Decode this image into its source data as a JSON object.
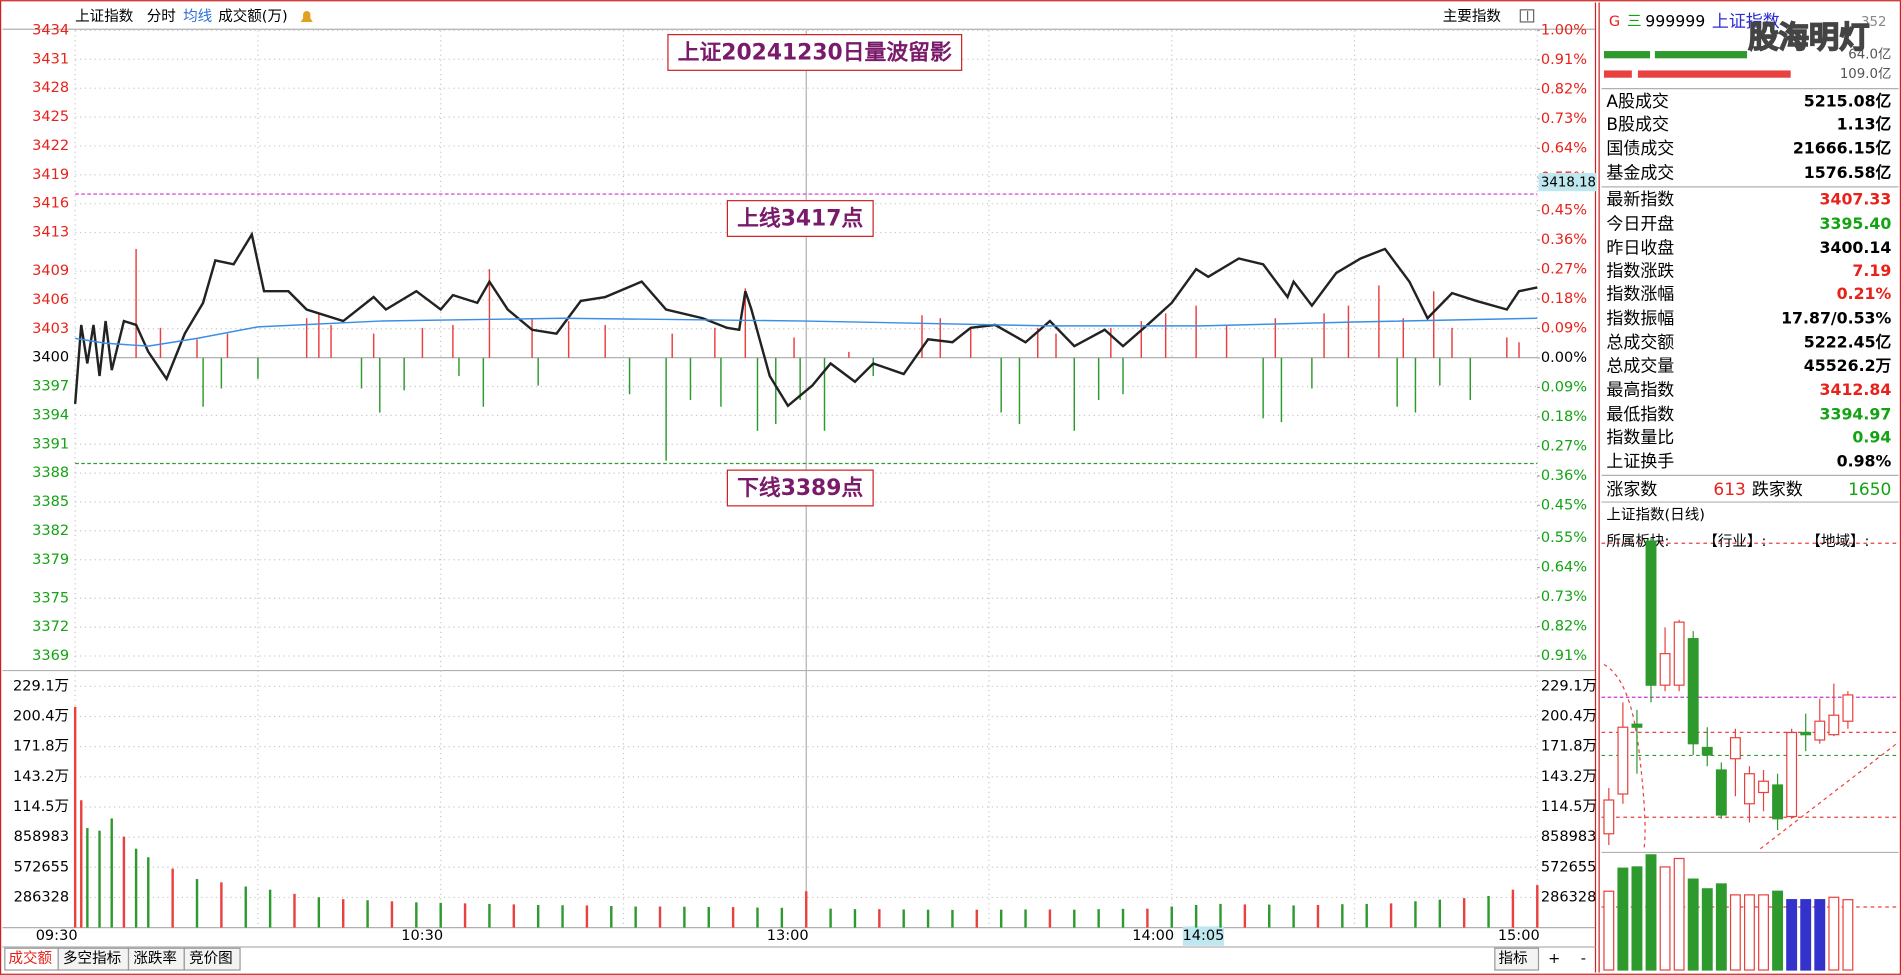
{
  "toolbar": {
    "items": [
      "上证指数",
      "分时",
      "均线",
      "成交额(万)"
    ],
    "right": "主要指数"
  },
  "tabs": {
    "items": [
      "成交额",
      "多空指标",
      "涨跌率",
      "竞价图"
    ],
    "right": [
      "指标",
      "+",
      "-"
    ]
  },
  "quote": {
    "market": "G",
    "menu": "三",
    "code": "999999",
    "name": "上证指数",
    "rank": "352",
    "watermark": "股海明灯",
    "bar_labels": [
      "64.0亿",
      "109.0亿"
    ],
    "rows": [
      {
        "label": "A股成交",
        "value": "5215.08亿",
        "color": "#000000"
      },
      {
        "label": "B股成交",
        "value": "1.13亿",
        "color": "#000000"
      },
      {
        "label": "国债成交",
        "value": "21666.15亿",
        "color": "#000000"
      },
      {
        "label": "基金成交",
        "value": "1576.58亿",
        "color": "#000000"
      },
      {
        "label": "最新指数",
        "value": "3407.33",
        "color": "#e8211a"
      },
      {
        "label": "今日开盘",
        "value": "3395.40",
        "color": "#13a313"
      },
      {
        "label": "昨日收盘",
        "value": "3400.14",
        "color": "#000000"
      },
      {
        "label": "指数涨跌",
        "value": "7.19",
        "color": "#e8211a"
      },
      {
        "label": "指数涨幅",
        "value": "0.21%",
        "color": "#e8211a"
      },
      {
        "label": "指数振幅",
        "value": "17.87/0.53%",
        "color": "#000000"
      },
      {
        "label": "总成交额",
        "value": "5222.45亿",
        "color": "#000000"
      },
      {
        "label": "总成交量",
        "value": "45526.2万",
        "color": "#000000"
      },
      {
        "label": "最高指数",
        "value": "3412.84",
        "color": "#e8211a"
      },
      {
        "label": "最低指数",
        "value": "3394.97",
        "color": "#13a313"
      },
      {
        "label": "指数量比",
        "value": "0.94",
        "color": "#13a313"
      },
      {
        "label": "上证换手",
        "value": "0.98%",
        "color": "#000000"
      }
    ],
    "advance_label": "涨家数",
    "advance": "613",
    "decline_label": "跌家数",
    "decline": "1650"
  },
  "chart_data": [
    {
      "type": "line",
      "title": "上证20241230日量波留影",
      "xlim": [
        0,
        240
      ],
      "xticks": [
        {
          "value": 0,
          "label": "09:30"
        },
        {
          "value": 60,
          "label": "10:30"
        },
        {
          "value": 120,
          "label": "13:00"
        },
        {
          "value": 180,
          "label": "14:00"
        },
        {
          "value": 240,
          "label": "15:00"
        }
      ],
      "xminor": [
        30,
        90,
        150,
        210
      ],
      "session_break": 120,
      "ylim": [
        3369,
        3434
      ],
      "yticks": [
        3434,
        3431,
        3428,
        3425,
        3422,
        3419,
        3416,
        3413,
        3409,
        3406,
        3403,
        3400,
        3397,
        3394,
        3391,
        3388,
        3385,
        3382,
        3379,
        3375,
        3372,
        3369
      ],
      "y2lim": [
        -0.91,
        1.0
      ],
      "y2ticks": [
        {
          "value": 1.0,
          "label": "1.00%"
        },
        {
          "value": 0.91,
          "label": "0.91%"
        },
        {
          "value": 0.82,
          "label": "0.82%"
        },
        {
          "value": 0.73,
          "label": "0.73%"
        },
        {
          "value": 0.64,
          "label": "0.64%"
        },
        {
          "value": 0.55,
          "label": "0.55%"
        },
        {
          "value": 0.45,
          "label": "0.45%"
        },
        {
          "value": 0.36,
          "label": "0.36%"
        },
        {
          "value": 0.27,
          "label": "0.27%"
        },
        {
          "value": 0.18,
          "label": "0.18%"
        },
        {
          "value": 0.09,
          "label": "0.09%"
        },
        {
          "value": 0,
          "label": "0.00%"
        },
        {
          "value": -0.09,
          "label": "0.09%"
        },
        {
          "value": -0.18,
          "label": "0.18%"
        },
        {
          "value": -0.27,
          "label": "0.27%"
        },
        {
          "value": -0.36,
          "label": "0.36%"
        },
        {
          "value": -0.45,
          "label": "0.45%"
        },
        {
          "value": -0.55,
          "label": "0.55%"
        },
        {
          "value": -0.64,
          "label": "0.64%"
        },
        {
          "value": -0.73,
          "label": "0.73%"
        },
        {
          "value": -0.82,
          "label": "0.82%"
        },
        {
          "value": -0.91,
          "label": "0.91%"
        }
      ],
      "grid": true,
      "up_color": "#e8413f",
      "down_color": "#2e9a2e",
      "series": [
        {
          "color": "#222222",
          "x": [
            0,
            1,
            2,
            3,
            4,
            5,
            6,
            8,
            10,
            12,
            15,
            18,
            21,
            23,
            26,
            29,
            31,
            35,
            38,
            44,
            49,
            51,
            56,
            60,
            62,
            66,
            68,
            71,
            75,
            79,
            83,
            87,
            93,
            97,
            103,
            107,
            109,
            110,
            111,
            114,
            117,
            121,
            124,
            128,
            131,
            136,
            140,
            144,
            147,
            151,
            156,
            160,
            164,
            169,
            172,
            176,
            180,
            184,
            186,
            191,
            195,
            199,
            200,
            203,
            207,
            211,
            215,
            219,
            222,
            226,
            230,
            235,
            237,
            240
          ],
          "values": [
            3395.2,
            3403.4,
            3399.4,
            3403.4,
            3398.1,
            3403.8,
            3398.7,
            3403.8,
            3403.4,
            3400.6,
            3397.8,
            3402.5,
            3405.7,
            3410.1,
            3409.7,
            3412.8,
            3406.9,
            3406.9,
            3405.0,
            3403.8,
            3406.3,
            3405.0,
            3406.9,
            3405.0,
            3406.5,
            3405.7,
            3407.9,
            3405.0,
            3402.9,
            3402.5,
            3405.9,
            3406.3,
            3407.9,
            3405.0,
            3404.1,
            3403.1,
            3402.9,
            3406.9,
            3405.0,
            3398.1,
            3395.0,
            3397.1,
            3399.4,
            3397.5,
            3399.4,
            3398.3,
            3401.9,
            3401.6,
            3403.1,
            3403.4,
            3401.6,
            3403.8,
            3401.2,
            3402.9,
            3401.2,
            3403.4,
            3405.7,
            3409.2,
            3408.4,
            3410.3,
            3409.7,
            3406.3,
            3407.9,
            3405.4,
            3408.8,
            3410.3,
            3411.3,
            3407.9,
            3404.1,
            3406.7,
            3405.9,
            3405.0,
            3406.9,
            3407.3
          ]
        },
        {
          "color": "#3a8ee6",
          "x": [
            0,
            5,
            12,
            20,
            30,
            50,
            80,
            120,
            160,
            185,
            210,
            240
          ],
          "values": [
            3402.0,
            3401.5,
            3401.2,
            3402.0,
            3403.2,
            3403.8,
            3404.1,
            3403.8,
            3403.3,
            3403.3,
            3403.7,
            3404.1
          ]
        }
      ],
      "breadth": {
        "x": [
          10,
          14,
          20,
          21,
          24,
          25,
          30,
          38,
          40,
          42,
          47,
          49,
          50,
          54,
          57,
          62,
          63,
          67,
          68,
          75,
          76,
          81,
          87,
          91,
          97,
          98,
          101,
          105,
          106,
          110,
          112,
          115,
          118,
          119,
          123,
          127,
          131,
          139,
          142,
          147,
          152,
          155,
          158,
          161,
          164,
          168,
          170,
          172,
          175,
          179,
          184,
          189,
          195,
          197,
          198,
          203,
          205,
          209,
          214,
          217,
          218,
          220,
          223,
          224,
          226,
          229,
          235,
          237
        ],
        "values": [
          3411.3,
          3403.1,
          3401.9,
          3394.9,
          3396.8,
          3402.5,
          3397.8,
          3404.1,
          3404.6,
          3403.4,
          3396.8,
          3402.5,
          3394.3,
          3396.6,
          3403.1,
          3403.4,
          3398.1,
          3394.9,
          3409.2,
          3404.1,
          3397.1,
          3403.8,
          3403.4,
          3396.2,
          3389.3,
          3402.5,
          3395.6,
          3403.1,
          3394.9,
          3407.2,
          3392.4,
          3393.1,
          3402.1,
          3395.6,
          3392.4,
          3400.6,
          3398.1,
          3404.4,
          3404.1,
          3403.1,
          3394.3,
          3393.1,
          3403.1,
          3402.5,
          3392.4,
          3395.6,
          3403.1,
          3396.2,
          3403.8,
          3404.6,
          3405.4,
          3403.4,
          3393.7,
          3404.1,
          3393.3,
          3396.8,
          3404.6,
          3405.4,
          3407.5,
          3394.9,
          3404.1,
          3394.3,
          3406.9,
          3397.1,
          3403.1,
          3395.6,
          3402.1,
          3401.6
        ]
      },
      "ref_lines": [
        {
          "value": 3417,
          "color": "#cc33cc",
          "label": "上线3417点"
        },
        {
          "value": 3389,
          "color": "#339933",
          "label": "下线3389点"
        }
      ],
      "cursor": {
        "y": 3418.18,
        "x": {
          "value": 185,
          "label": "14:05"
        }
      }
    },
    {
      "type": "bar",
      "xlim": [
        0,
        240
      ],
      "ylim": [
        0,
        2290621
      ],
      "yticks": [
        {
          "value": 2290621,
          "label": "229.1万"
        },
        {
          "value": 2004293,
          "label": "200.4万"
        },
        {
          "value": 1717966,
          "label": "171.8万"
        },
        {
          "value": 1431638,
          "label": "143.2万"
        },
        {
          "value": 1145311,
          "label": "114.5万"
        },
        858983,
        572655,
        286328
      ],
      "grid": true,
      "series": [
        {
          "color": "#e8413f",
          "x": [
            0,
            1,
            8,
            16,
            24,
            36,
            44,
            52,
            64,
            72,
            84,
            96,
            108,
            120,
            132,
            148,
            160,
            176,
            192,
            204,
            216,
            228,
            236,
            240
          ],
          "values": [
            2096000,
            1209000,
            864000,
            560000,
            430000,
            320000,
            270000,
            250000,
            230000,
            220000,
            210000,
            200000,
            195000,
            345000,
            175000,
            170000,
            172000,
            180000,
            220000,
            215000,
            230000,
            280000,
            360000,
            403000
          ]
        },
        {
          "color": "#2e9a2e",
          "x": [
            2,
            4,
            6,
            10,
            12,
            20,
            28,
            32,
            40,
            48,
            56,
            60,
            68,
            76,
            80,
            88,
            92,
            100,
            104,
            112,
            116,
            124,
            128,
            136,
            140,
            144,
            152,
            156,
            164,
            168,
            172,
            180,
            184,
            188,
            196,
            200,
            208,
            212,
            220,
            224,
            232
          ],
          "values": [
            945000,
            920000,
            1036000,
            749000,
            668000,
            461000,
            390000,
            360000,
            288000,
            260000,
            240000,
            235000,
            225000,
            215000,
            212000,
            205000,
            200000,
            198000,
            196000,
            190000,
            188000,
            180000,
            175000,
            172000,
            170000,
            168000,
            170000,
            172000,
            170000,
            175000,
            178000,
            200000,
            215000,
            225000,
            218000,
            210000,
            222000,
            225000,
            250000,
            265000,
            300000
          ]
        }
      ]
    },
    {
      "type": "candlestick",
      "title": "上证指数(日线)",
      "annotations": [
        "所属板块:",
        "【行业】:",
        "【地域】:"
      ],
      "ylim": [
        3100,
        3520
      ],
      "up_color": "#e8413f",
      "down_color": "#2e9a2e",
      "open": [
        3120,
        3173,
        3266,
        3510,
        3318,
        3318,
        3380,
        3235,
        3205,
        3220,
        3160,
        3175,
        3185,
        3143,
        3255,
        3245,
        3252,
        3270
      ],
      "high": [
        3181,
        3295,
        3285,
        3515,
        3395,
        3405,
        3390,
        3262,
        3215,
        3260,
        3210,
        3205,
        3200,
        3260,
        3280,
        3300,
        3320,
        3310
      ],
      "low": [
        3105,
        3160,
        3200,
        3295,
        3310,
        3310,
        3225,
        3210,
        3140,
        3170,
        3135,
        3150,
        3125,
        3140,
        3230,
        3240,
        3250,
        3260
      ],
      "close": [
        3165,
        3262,
        3262,
        3318,
        3360,
        3402,
        3240,
        3225,
        3145,
        3248,
        3200,
        3190,
        3140,
        3255,
        3252,
        3270,
        3278,
        3305
      ]
    },
    {
      "type": "bar",
      "ylim": [
        0,
        12000
      ],
      "values": [
        8210,
        10610,
        10740,
        12000,
        10740,
        11620,
        9470,
        8460,
        8970,
        7830,
        7830,
        7830,
        8210,
        7330,
        7330,
        7330,
        7580,
        7330
      ],
      "colors": [
        "#e8413f",
        "#2e9a2e",
        "#2e9a2e",
        "#2e9a2e",
        "#e8413f",
        "#e8413f",
        "#2e9a2e",
        "#2e9a2e",
        "#2e9a2e",
        "#e8413f",
        "#e8413f",
        "#e8413f",
        "#2e9a2e",
        "#3333cc",
        "#3333cc",
        "#3333cc",
        "#e8413f",
        "#e8413f"
      ],
      "hollow_color": "#e8413f"
    }
  ]
}
